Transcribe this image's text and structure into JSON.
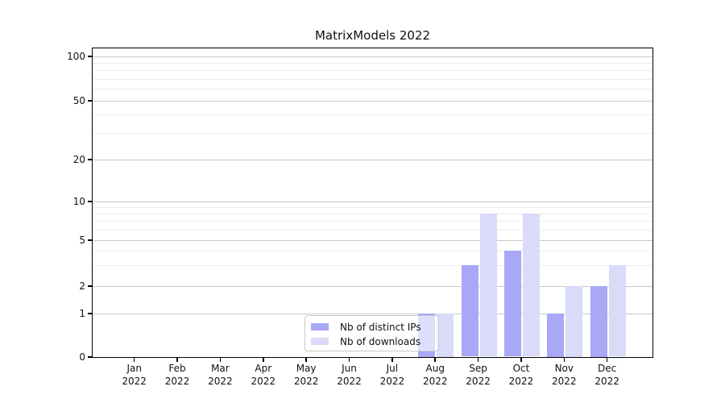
{
  "title": "MatrixModels 2022",
  "chart_data": {
    "type": "bar",
    "title": "MatrixModels 2022",
    "categories": [
      "Jan",
      "Feb",
      "Mar",
      "Apr",
      "May",
      "Jun",
      "Jul",
      "Aug",
      "Sep",
      "Oct",
      "Nov",
      "Dec"
    ],
    "x_year_label": "2022",
    "series": [
      {
        "name": "Nb of distinct IPs",
        "color": "#a8a8f6",
        "values": [
          0,
          0,
          0,
          0,
          0,
          0,
          0,
          1,
          3,
          4,
          1,
          2
        ]
      },
      {
        "name": "Nb of downloads",
        "color": "#dadaf9",
        "values": [
          0,
          0,
          0,
          0,
          0,
          0,
          0,
          1,
          8,
          8,
          2,
          3
        ]
      }
    ],
    "y_axis": {
      "tick_labels": [
        "0",
        "1",
        "2",
        "5",
        "10",
        "20",
        "50",
        "100"
      ],
      "ticks": [
        0,
        1,
        2,
        5,
        10,
        20,
        50,
        100
      ],
      "minor_gridlines": [
        3,
        4,
        6,
        7,
        8,
        9,
        30,
        40,
        60,
        70,
        80,
        90
      ],
      "scale": "log-like",
      "range": [
        0,
        100
      ]
    },
    "legend": {
      "position": "bottom-center",
      "items": [
        "Nb of distinct IPs",
        "Nb of downloads"
      ]
    },
    "grid": true
  },
  "colors": {
    "series_distinct_ips": "#a8a8f6",
    "series_downloads": "#dadaf9",
    "grid_major": "#c9c9c9",
    "grid_minor": "#ebebeb",
    "spine": "#000000",
    "text": "#111111",
    "legend_border": "#c8c8c8"
  }
}
